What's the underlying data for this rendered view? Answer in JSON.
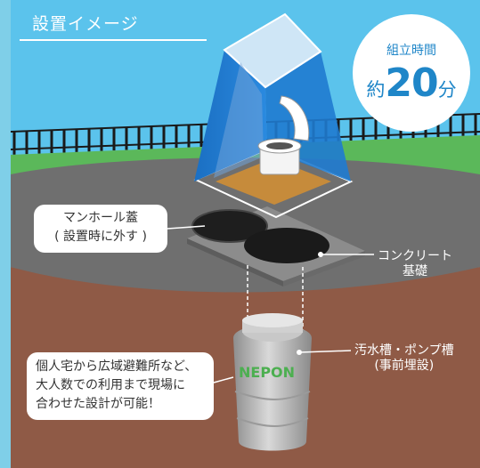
{
  "title": "設置イメージ",
  "badge": {
    "label": "組立時間",
    "prefix": "約",
    "value": "20",
    "unit": "分"
  },
  "callouts": {
    "manhole_lid": {
      "line1": "マンホール蓋",
      "line2": "( 設置時に外す )"
    },
    "concrete": {
      "line1": "コンクリート",
      "line2": "基礎"
    },
    "tank": {
      "line1": "汚水槽・ポンプ槽",
      "line2": "(事前埋設)"
    },
    "note": {
      "line1": "個人宅から広域避難所など、",
      "line2": "大人数での利用まで現場に",
      "line3": "合わせた設計が可能！"
    }
  },
  "tank_brand": "NEPON",
  "colors": {
    "sky": "#5bc3ec",
    "grass": "#5bb85a",
    "ground": "#8f5a46",
    "concrete": "#7b7b7b",
    "tent_blue": "#1f7bd0",
    "accent_blue": "#1f86c8",
    "brand_green": "#4caf50"
  }
}
